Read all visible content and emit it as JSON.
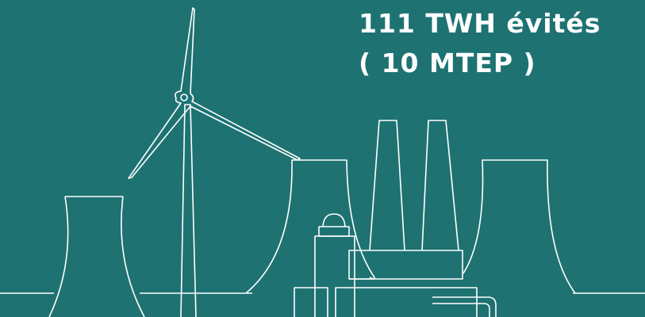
{
  "headline": {
    "line1": "111 TWH évités",
    "line2": "( 10 MTEP )"
  }
}
